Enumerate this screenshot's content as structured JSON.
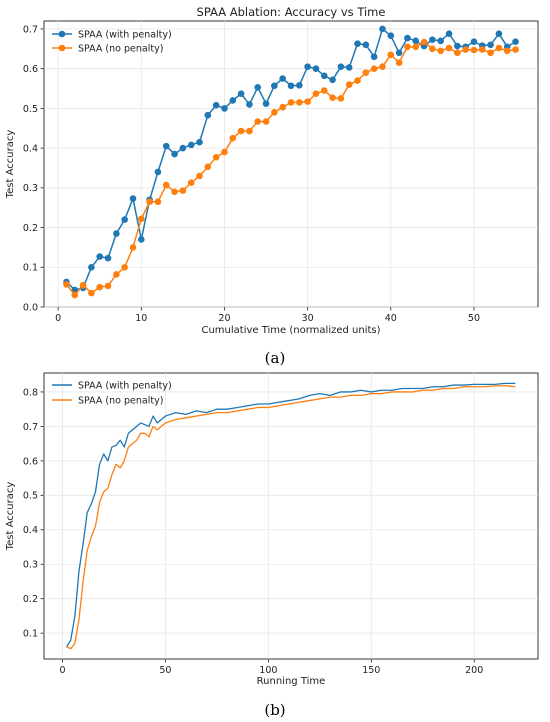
{
  "chart_data": [
    {
      "type": "line",
      "title": "SPAA Ablation: Accuracy vs Time",
      "xlabel": "Cumulative Time (normalized units)",
      "ylabel": "Test Accuracy",
      "caption": "(a)",
      "xlim": [
        -1.7,
        57.7
      ],
      "ylim": [
        0.0,
        0.72
      ],
      "xticks": [
        0,
        10,
        20,
        30,
        40,
        50
      ],
      "yticks": [
        0.0,
        0.1,
        0.2,
        0.3,
        0.4,
        0.5,
        0.6,
        0.7
      ],
      "grid": true,
      "markers": true,
      "legend_position": "top-left",
      "series": [
        {
          "name": "SPAA (with penalty)",
          "color": "#1f77b4",
          "x": [
            1,
            2,
            3,
            4,
            5,
            6,
            7,
            8,
            9,
            10,
            11,
            12,
            13,
            14,
            15,
            16,
            17,
            18,
            19,
            20,
            21,
            22,
            23,
            24,
            25,
            26,
            27,
            28,
            29,
            30,
            31,
            32,
            33,
            34,
            35,
            36,
            37,
            38,
            39,
            40,
            41,
            42,
            43,
            44,
            45,
            46,
            47,
            48,
            49,
            50,
            51,
            52,
            53,
            54,
            55
          ],
          "y": [
            0.063,
            0.043,
            0.048,
            0.1,
            0.127,
            0.123,
            0.185,
            0.22,
            0.273,
            0.17,
            0.27,
            0.34,
            0.405,
            0.385,
            0.4,
            0.408,
            0.415,
            0.483,
            0.508,
            0.5,
            0.52,
            0.537,
            0.51,
            0.553,
            0.512,
            0.557,
            0.575,
            0.557,
            0.558,
            0.605,
            0.6,
            0.582,
            0.572,
            0.605,
            0.603,
            0.663,
            0.66,
            0.63,
            0.7,
            0.683,
            0.64,
            0.677,
            0.67,
            0.657,
            0.673,
            0.67,
            0.688,
            0.657,
            0.655,
            0.668,
            0.658,
            0.66,
            0.688,
            0.655,
            0.668
          ]
        },
        {
          "name": "SPAA (no penalty)",
          "color": "#ff7f0e",
          "x": [
            1,
            2,
            3,
            4,
            5,
            6,
            7,
            8,
            9,
            10,
            11,
            12,
            13,
            14,
            15,
            16,
            17,
            18,
            19,
            20,
            21,
            22,
            23,
            24,
            25,
            26,
            27,
            28,
            29,
            30,
            31,
            32,
            33,
            34,
            35,
            36,
            37,
            38,
            39,
            40,
            41,
            42,
            43,
            44,
            45,
            46,
            47,
            48,
            49,
            50,
            51,
            52,
            53,
            54,
            55
          ],
          "y": [
            0.057,
            0.03,
            0.055,
            0.035,
            0.05,
            0.053,
            0.082,
            0.1,
            0.15,
            0.222,
            0.265,
            0.265,
            0.307,
            0.29,
            0.293,
            0.313,
            0.33,
            0.353,
            0.377,
            0.39,
            0.425,
            0.443,
            0.443,
            0.467,
            0.467,
            0.49,
            0.503,
            0.515,
            0.515,
            0.517,
            0.537,
            0.545,
            0.527,
            0.525,
            0.56,
            0.57,
            0.59,
            0.6,
            0.605,
            0.635,
            0.615,
            0.655,
            0.655,
            0.667,
            0.65,
            0.645,
            0.652,
            0.64,
            0.648,
            0.647,
            0.648,
            0.64,
            0.652,
            0.645,
            0.648
          ]
        }
      ]
    },
    {
      "type": "line",
      "xlabel": "Running Time",
      "ylabel": "Test Accuracy",
      "caption": "(b)",
      "xlim": [
        -9,
        231
      ],
      "ylim": [
        0.025,
        0.855
      ],
      "xticks": [
        0,
        50,
        100,
        150,
        200
      ],
      "yticks": [
        0.1,
        0.2,
        0.3,
        0.4,
        0.5,
        0.6,
        0.7,
        0.8
      ],
      "grid": true,
      "markers": false,
      "legend_position": "top-left",
      "series": [
        {
          "name": "SPAA (with penalty)",
          "color": "#1f77b4",
          "x": [
            2,
            4,
            6,
            8,
            10,
            12,
            14,
            16,
            18,
            20,
            22,
            24,
            26,
            28,
            30,
            32,
            34,
            36,
            38,
            40,
            42,
            44,
            46,
            48,
            50,
            55,
            60,
            65,
            70,
            75,
            80,
            85,
            90,
            95,
            100,
            105,
            110,
            115,
            120,
            125,
            130,
            135,
            140,
            145,
            150,
            155,
            160,
            165,
            170,
            175,
            180,
            185,
            190,
            195,
            200,
            205,
            210,
            215,
            220
          ],
          "y": [
            0.06,
            0.08,
            0.15,
            0.28,
            0.36,
            0.45,
            0.475,
            0.51,
            0.59,
            0.62,
            0.6,
            0.64,
            0.645,
            0.66,
            0.64,
            0.68,
            0.69,
            0.7,
            0.71,
            0.705,
            0.7,
            0.73,
            0.71,
            0.72,
            0.73,
            0.74,
            0.735,
            0.745,
            0.74,
            0.75,
            0.75,
            0.755,
            0.76,
            0.765,
            0.765,
            0.77,
            0.775,
            0.78,
            0.79,
            0.795,
            0.79,
            0.8,
            0.8,
            0.805,
            0.8,
            0.805,
            0.805,
            0.81,
            0.81,
            0.81,
            0.815,
            0.815,
            0.82,
            0.82,
            0.822,
            0.822,
            0.822,
            0.825,
            0.825
          ]
        },
        {
          "name": "SPAA (no penalty)",
          "color": "#ff7f0e",
          "x": [
            2,
            4,
            6,
            8,
            10,
            12,
            14,
            16,
            18,
            20,
            22,
            24,
            26,
            28,
            30,
            32,
            34,
            36,
            38,
            40,
            42,
            44,
            46,
            48,
            50,
            55,
            60,
            65,
            70,
            75,
            80,
            85,
            90,
            95,
            100,
            105,
            110,
            115,
            120,
            125,
            130,
            135,
            140,
            145,
            150,
            155,
            160,
            165,
            170,
            175,
            180,
            185,
            190,
            195,
            200,
            205,
            210,
            215,
            220
          ],
          "y": [
            0.06,
            0.055,
            0.07,
            0.14,
            0.25,
            0.34,
            0.38,
            0.41,
            0.48,
            0.51,
            0.52,
            0.56,
            0.59,
            0.58,
            0.6,
            0.64,
            0.65,
            0.66,
            0.68,
            0.68,
            0.67,
            0.7,
            0.69,
            0.7,
            0.71,
            0.72,
            0.725,
            0.73,
            0.735,
            0.74,
            0.74,
            0.745,
            0.75,
            0.755,
            0.755,
            0.76,
            0.765,
            0.77,
            0.775,
            0.78,
            0.785,
            0.785,
            0.79,
            0.79,
            0.795,
            0.795,
            0.8,
            0.8,
            0.8,
            0.805,
            0.805,
            0.81,
            0.81,
            0.815,
            0.815,
            0.815,
            0.818,
            0.818,
            0.815
          ]
        }
      ]
    }
  ]
}
